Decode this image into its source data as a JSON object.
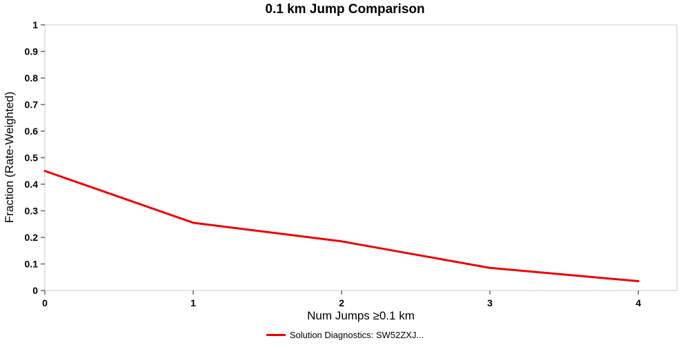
{
  "chart_data": {
    "type": "line",
    "title": "0.1 km Jump Comparison",
    "xlabel": "Num Jumps ≥0.1 km",
    "ylabel": "Fraction (Rate-Weighted)",
    "x": [
      0,
      1,
      2,
      3,
      4
    ],
    "series": [
      {
        "name": "Solution Diagnostics: SW52ZXJ...",
        "values": [
          0.45,
          0.255,
          0.185,
          0.085,
          0.035
        ],
        "color": "#ee0000"
      }
    ],
    "xlim": [
      0,
      4.26
    ],
    "ylim": [
      0,
      1
    ],
    "xticks": [
      0,
      1,
      2,
      3,
      4
    ],
    "yticks": [
      0,
      0.1,
      0.2,
      0.3,
      0.4,
      0.5,
      0.6,
      0.7,
      0.8,
      0.9,
      1
    ],
    "grid": false,
    "legend_position": "bottom",
    "colors": {
      "plot_border": "#c8c8c8",
      "tick": "#666666",
      "text": "#000000",
      "background": "#ffffff"
    }
  }
}
